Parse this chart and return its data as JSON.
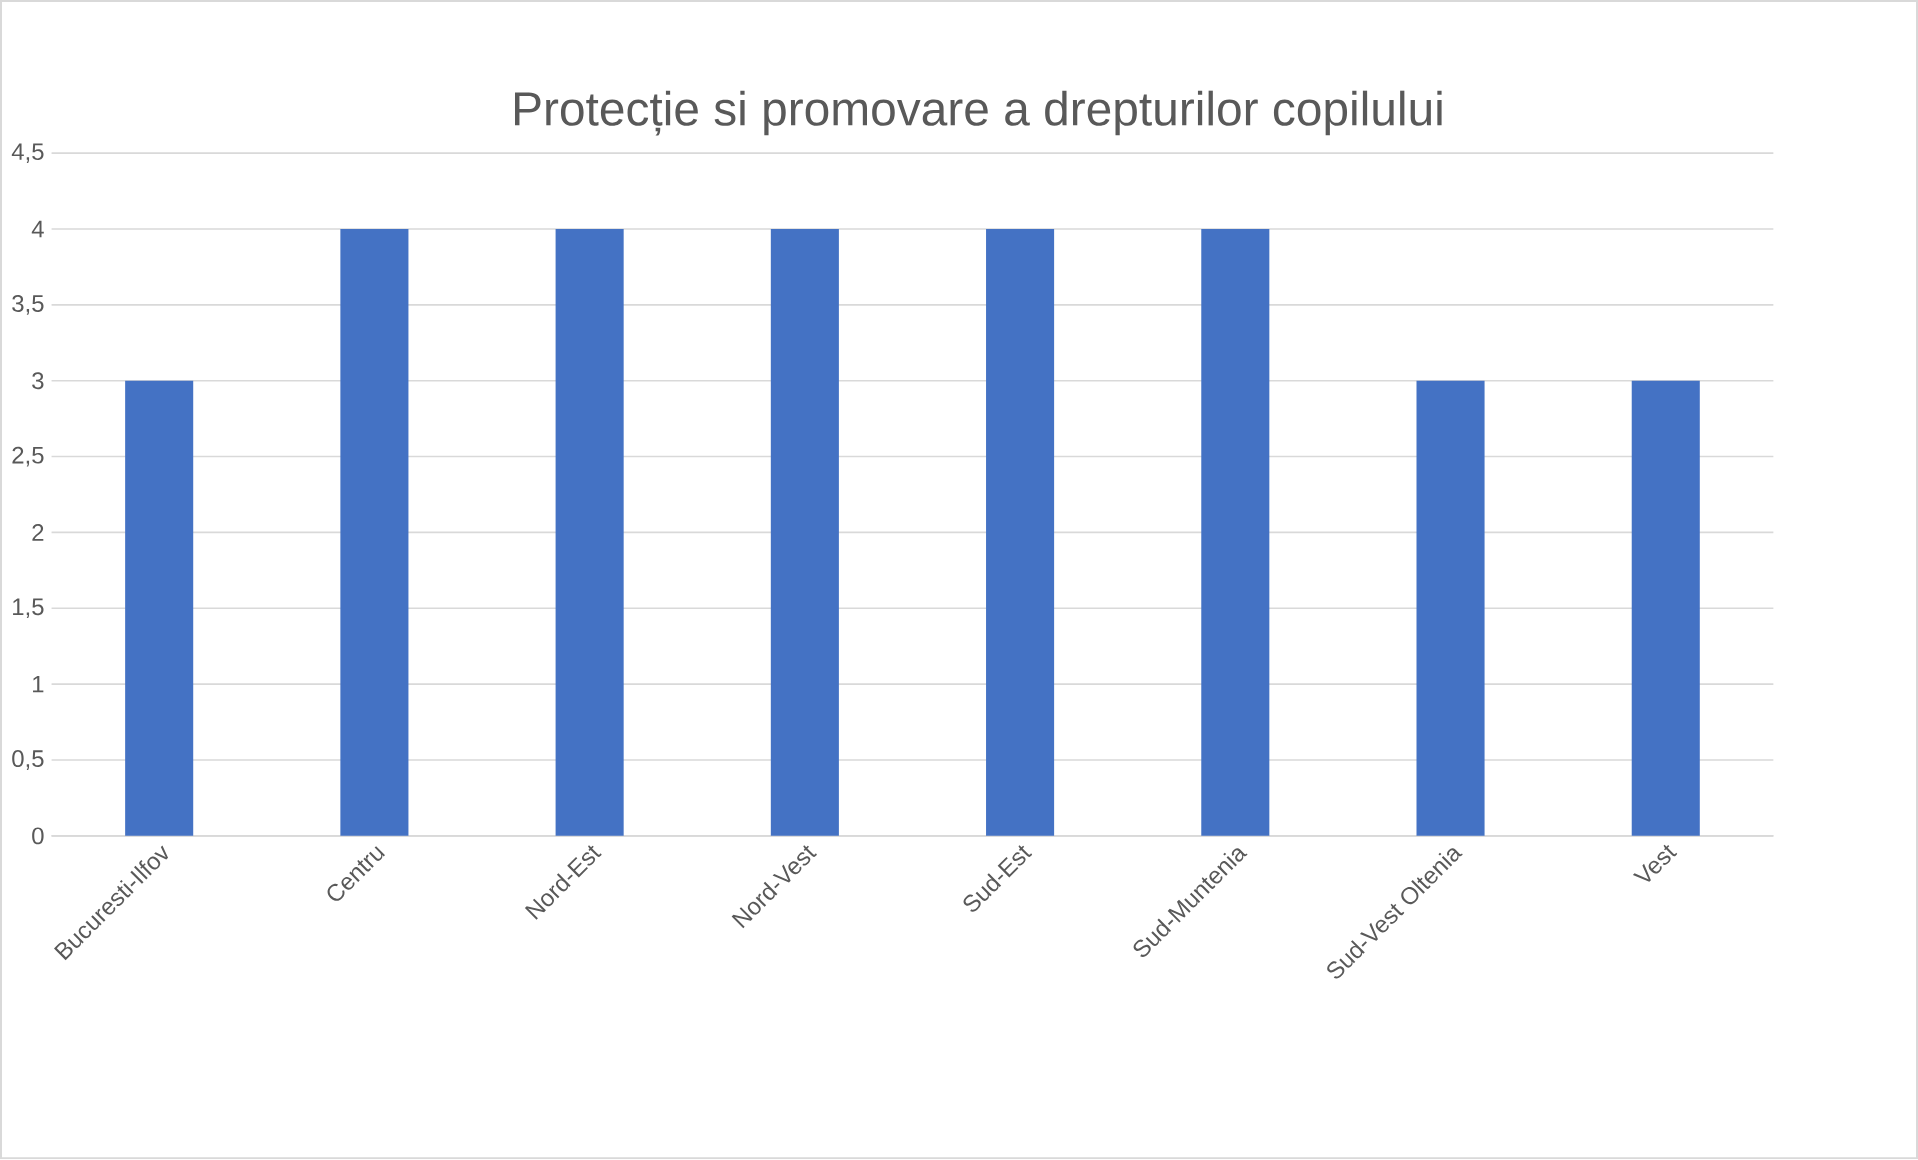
{
  "chart_data": {
    "type": "bar",
    "title": "Protecție si promovare a drepturilor copilului",
    "categories": [
      "Bucuresti-Ilfov",
      "Centru",
      "Nord-Est",
      "Nord-Vest",
      "Sud-Est",
      "Sud-Muntenia",
      "Sud-Vest Oltenia",
      "Vest"
    ],
    "values": [
      3,
      4,
      4,
      4,
      4,
      4,
      3,
      3
    ],
    "color": "#4472c4",
    "ylim": [
      0,
      4.5
    ],
    "yticks": [
      0,
      {
        "value": 0.5,
        "label": "0,5"
      },
      1,
      {
        "value": 1.5,
        "label": "1,5"
      },
      2,
      {
        "value": 2.5,
        "label": "2,5"
      },
      3,
      {
        "value": 3.5,
        "label": "3,5"
      },
      4,
      {
        "value": 4.5,
        "label": "4,5"
      }
    ],
    "grid": "y"
  }
}
